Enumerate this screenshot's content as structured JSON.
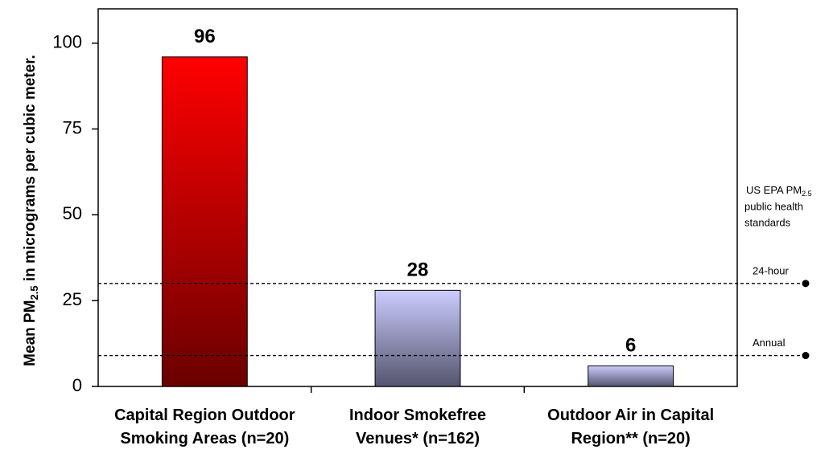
{
  "chart_data": {
    "type": "bar",
    "y_label": {
      "text": "Mean PM",
      "sub": "2.5",
      "rest": " in micrograms per cubic meter."
    },
    "categories": [
      "Capital Region Outdoor Smoking Areas (n=20)",
      "Indoor Smokefree Venues* (n=162)",
      "Outdoor Air in Capital Region** (n=20)"
    ],
    "values": [
      96,
      28,
      6
    ],
    "colors": [
      "#ff0000",
      "#ccccff",
      "#ccccff"
    ],
    "ylim": [
      0,
      110
    ],
    "yticks": [
      0,
      25,
      50,
      75,
      100
    ],
    "reference_title": {
      "text": "US EPA PM",
      "sub": "2.5",
      "line2": "public health",
      "line3": "standards"
    },
    "reference_lines": [
      {
        "label": "24-hour",
        "value": 30
      },
      {
        "label": "Annual",
        "value": 9
      }
    ]
  }
}
